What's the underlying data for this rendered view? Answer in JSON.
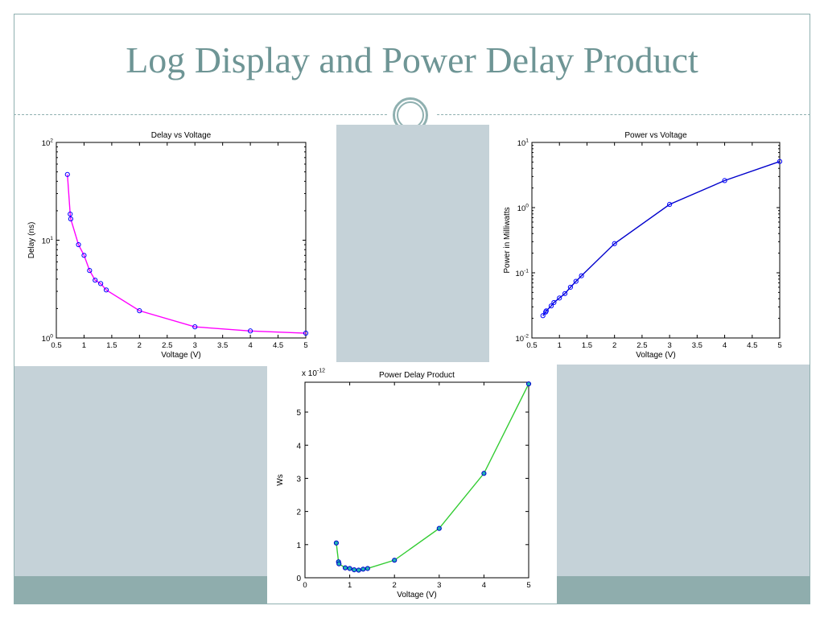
{
  "slide": {
    "title": "Log Display and Power Delay Product"
  },
  "theme": {
    "title_color": "#6e9595",
    "frame_color": "#8fb0b0",
    "panel_color": "#c5d2d8",
    "band_color": "#8fadad",
    "ornament": "double-ring-icon"
  },
  "chart_data": [
    {
      "id": "delay",
      "type": "line",
      "title": "Delay vs Voltage",
      "xlabel": "Voltage (V)",
      "ylabel": "Delay (ns)",
      "xlim": [
        0.5,
        5
      ],
      "ylim": [
        1,
        100
      ],
      "yscale": "log",
      "xticks": [
        0.5,
        1,
        1.5,
        2,
        2.5,
        3,
        3.5,
        4,
        4.5,
        5
      ],
      "xtick_labels": [
        "0.5",
        "1",
        "1.5",
        "2",
        "2.5",
        "3",
        "3.5",
        "4",
        "4.5",
        "5"
      ],
      "yticks": [
        1,
        10,
        100
      ],
      "ytick_labels": [
        [
          "10",
          "0"
        ],
        [
          "10",
          "1"
        ],
        [
          "10",
          "2"
        ]
      ],
      "grid": false,
      "line_color": "#ff00ff",
      "marker_color": "#0000ff",
      "series": [
        {
          "x": [
            0.7,
            0.75,
            0.76,
            0.9,
            1.0,
            1.1,
            1.2,
            1.3,
            1.4,
            2.0,
            3.0,
            4.0,
            5.0
          ],
          "y": [
            47,
            18.5,
            16.5,
            9.0,
            7.0,
            4.9,
            3.9,
            3.6,
            3.1,
            1.9,
            1.3,
            1.18,
            1.12
          ]
        }
      ]
    },
    {
      "id": "power",
      "type": "line",
      "title": "Power vs Voltage",
      "xlabel": "Voltage (V)",
      "ylabel": "Power in Milliwatts",
      "xlim": [
        0.5,
        5
      ],
      "ylim": [
        0.01,
        10
      ],
      "yscale": "log",
      "xticks": [
        0.5,
        1,
        1.5,
        2,
        2.5,
        3,
        3.5,
        4,
        4.5,
        5
      ],
      "xtick_labels": [
        "0.5",
        "1",
        "1.5",
        "2",
        "2.5",
        "3",
        "3.5",
        "4",
        "4.5",
        "5"
      ],
      "yticks": [
        0.01,
        0.1,
        1,
        10
      ],
      "ytick_labels": [
        [
          "10",
          "-2"
        ],
        [
          "10",
          "-1"
        ],
        [
          "10",
          "0"
        ],
        [
          "10",
          "1"
        ]
      ],
      "grid": false,
      "line_color": "#0000cc",
      "marker_color": "#0000ff",
      "series": [
        {
          "x": [
            0.7,
            0.75,
            0.76,
            0.85,
            0.9,
            1.0,
            1.1,
            1.2,
            1.3,
            1.4,
            2.0,
            3.0,
            4.0,
            5.0
          ],
          "y": [
            0.022,
            0.025,
            0.026,
            0.031,
            0.035,
            0.041,
            0.048,
            0.06,
            0.074,
            0.09,
            0.28,
            1.12,
            2.6,
            5.1
          ]
        }
      ]
    },
    {
      "id": "pdp",
      "type": "line",
      "title": "Power Delay Product",
      "xlabel": "Voltage (V)",
      "ylabel": "Ws",
      "multiplier": [
        "x 10",
        "-12"
      ],
      "xlim": [
        0,
        5
      ],
      "ylim": [
        0,
        5.9
      ],
      "yscale": "linear",
      "xticks": [
        0,
        1,
        2,
        3,
        4,
        5
      ],
      "xtick_labels": [
        "0",
        "1",
        "2",
        "3",
        "4",
        "5"
      ],
      "yticks": [
        0,
        1,
        2,
        3,
        4,
        5
      ],
      "ytick_labels": [
        "0",
        "1",
        "2",
        "3",
        "4",
        "5"
      ],
      "grid": false,
      "line_color": "#33cc33",
      "marker_color": "#0000cc",
      "marker_fill": "#1fb3b3",
      "series": [
        {
          "x": [
            0.7,
            0.75,
            0.76,
            0.9,
            1.0,
            1.1,
            1.2,
            1.3,
            1.4,
            2.0,
            3.0,
            4.0,
            5.0
          ],
          "y": [
            1.05,
            0.48,
            0.42,
            0.3,
            0.28,
            0.24,
            0.23,
            0.26,
            0.28,
            0.53,
            1.49,
            3.15,
            5.85
          ]
        }
      ]
    }
  ]
}
